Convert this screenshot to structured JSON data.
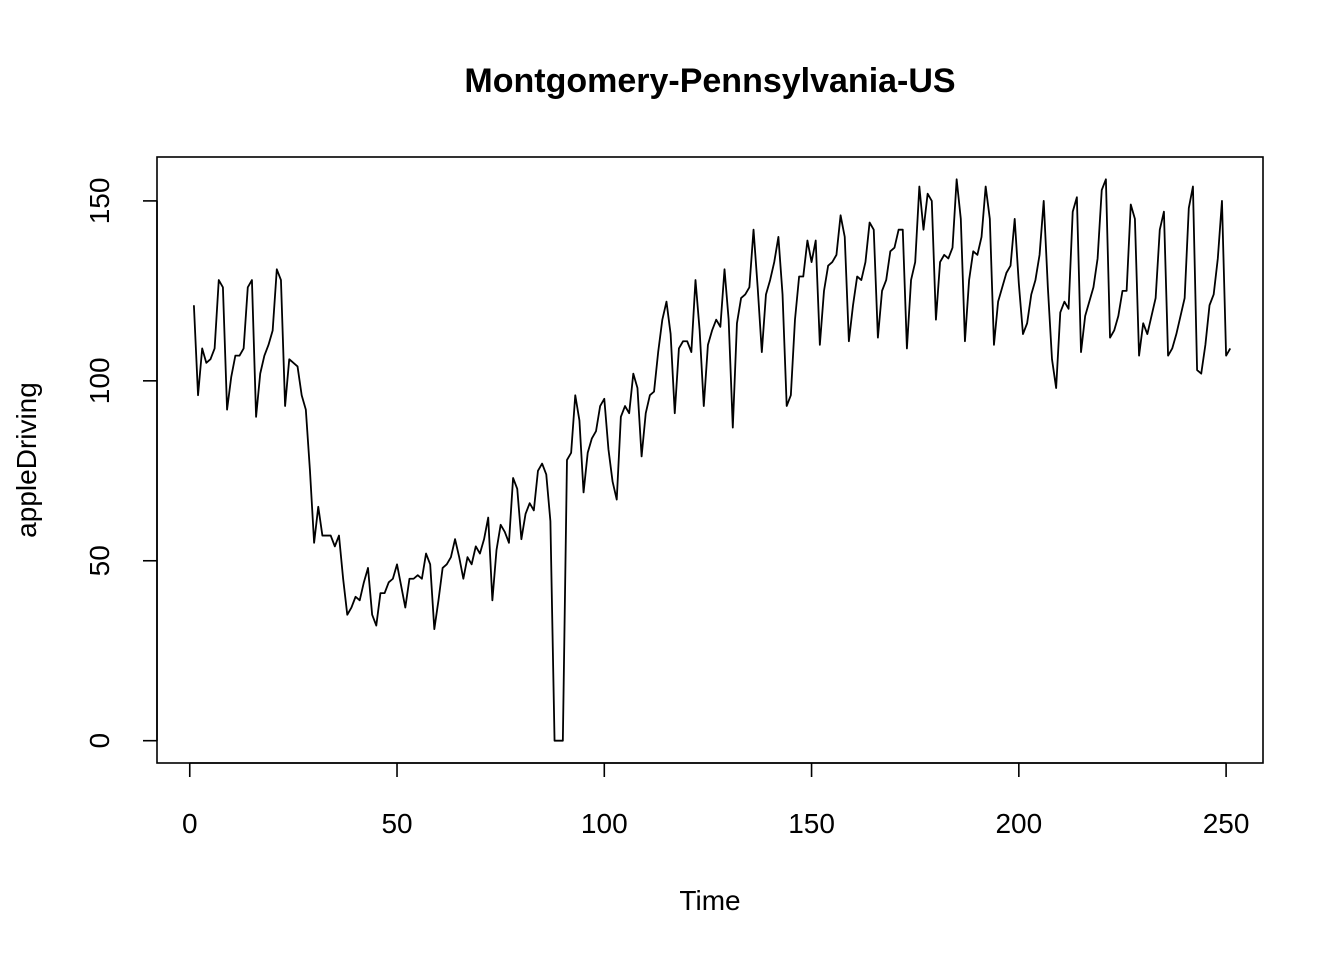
{
  "chart_data": {
    "type": "line",
    "title": "Montgomery-Pennsylvania-US",
    "xlabel": "Time",
    "ylabel": "appleDriving",
    "xlim": [
      -7.9,
      258.9
    ],
    "ylim": [
      -6.2,
      162.2
    ],
    "x_ticks": [
      0,
      50,
      100,
      150,
      200,
      250
    ],
    "y_ticks": [
      0,
      50,
      100,
      150
    ],
    "grid": false,
    "legend": "none",
    "series": [
      {
        "values": [
          121,
          96,
          109,
          105,
          106,
          109,
          128,
          126,
          92,
          101,
          107,
          107,
          109,
          126,
          128,
          90,
          102,
          107,
          110,
          114,
          131,
          128,
          93,
          106,
          105,
          104,
          96,
          92,
          75,
          55,
          65,
          57,
          57,
          57,
          54,
          57,
          45,
          35,
          37,
          40,
          39,
          44,
          48,
          35,
          32,
          41,
          41,
          44,
          45,
          49,
          43,
          37,
          45,
          45,
          46,
          45,
          52,
          49,
          31,
          39,
          48,
          49,
          51,
          56,
          51,
          45,
          51,
          49,
          54,
          52,
          56,
          62,
          39,
          53,
          60,
          58,
          55,
          73,
          70,
          56,
          63,
          66,
          64,
          75,
          77,
          74,
          61,
          0,
          0,
          0,
          78,
          80,
          96,
          89,
          69,
          80,
          84,
          86,
          93,
          95,
          81,
          72,
          67,
          90,
          93,
          91,
          102,
          98,
          79,
          91,
          96,
          97,
          108,
          117,
          122,
          113,
          91,
          109,
          111,
          111,
          108,
          128,
          114,
          93,
          110,
          114,
          117,
          115,
          131,
          117,
          87,
          116,
          123,
          124,
          126,
          142,
          126,
          108,
          124,
          128,
          133,
          140,
          124,
          93,
          96,
          117,
          129,
          129,
          139,
          133,
          139,
          110,
          125,
          132,
          133,
          135,
          146,
          140,
          111,
          121,
          129,
          128,
          133,
          144,
          142,
          112,
          125,
          128,
          136,
          137,
          142,
          142,
          109,
          128,
          133,
          154,
          142,
          152,
          150,
          117,
          133,
          135,
          134,
          137,
          156,
          145,
          111,
          128,
          136,
          135,
          140,
          154,
          145,
          110,
          122,
          126,
          130,
          132,
          145,
          127,
          113,
          116,
          124,
          128,
          135,
          150,
          126,
          106,
          98,
          119,
          122,
          120,
          147,
          151,
          108,
          118,
          122,
          126,
          134,
          153,
          156,
          112,
          114,
          118,
          125,
          125,
          149,
          145,
          107,
          116,
          113,
          118,
          123,
          142,
          147,
          107,
          109,
          113,
          118,
          123,
          148,
          154,
          103,
          102,
          110,
          121,
          124,
          134,
          150,
          107,
          109
        ]
      }
    ]
  }
}
